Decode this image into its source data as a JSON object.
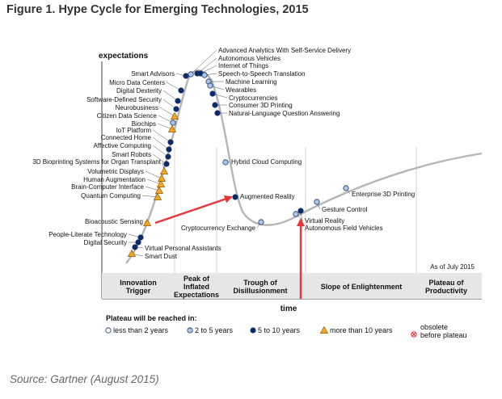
{
  "figure_title": "Figure 1. Hype Cycle for Emerging Technologies, 2015",
  "source_note": "Source: Gartner (August 2015)",
  "colors": {
    "curve": "#b5b5b5",
    "dot_dark": "#0b2a6e",
    "dot_light": "#a9c7e8",
    "dot_white": "#ffffff",
    "triangle_fill": "#f5a623",
    "triangle_stroke": "#8a5a00",
    "obsolete": "#e03030",
    "annotation_arrow": "#e8373a",
    "phase_band": "#e6e6e6",
    "phase_divider": "#c9c9c9"
  },
  "chart_data": {
    "type": "diagram",
    "title": "Figure 1. Hype Cycle for Emerging Technologies, 2015",
    "ylabel": "expectations",
    "xlabel": "time",
    "as_of": "As of July 2015",
    "phases": [
      "Innovation Trigger",
      "Peak of Inflated Expectations",
      "Trough of Disillusionment",
      "Slope of Enlightenment",
      "Plateau of Productivity"
    ],
    "legend": {
      "title": "Plateau will be reached in:",
      "items": [
        {
          "marker": "open",
          "label": "less than 2 years"
        },
        {
          "marker": "light",
          "label": "2 to 5 years"
        },
        {
          "marker": "dark",
          "label": "5 to 10 years"
        },
        {
          "marker": "triangle",
          "label": "more than 10 years"
        },
        {
          "marker": "obsolete",
          "label": "obsolete before plateau"
        }
      ]
    },
    "technologies": [
      {
        "name": "Smart Dust",
        "plateau": "more than 10 years",
        "marker": "triangle"
      },
      {
        "name": "Virtual Personal Assistants",
        "plateau": "5 to 10 years",
        "marker": "dark"
      },
      {
        "name": "Digital Security",
        "plateau": "5 to 10 years",
        "marker": "dark"
      },
      {
        "name": "People-Literate Technology",
        "plateau": "5 to 10 years",
        "marker": "dark"
      },
      {
        "name": "Bioacoustic Sensing",
        "plateau": "more than 10 years",
        "marker": "triangle"
      },
      {
        "name": "Quantum Computing",
        "plateau": "more than 10 years",
        "marker": "triangle"
      },
      {
        "name": "Brain-Computer Interface",
        "plateau": "more than 10 years",
        "marker": "triangle"
      },
      {
        "name": "Human Augmentation",
        "plateau": "more than 10 years",
        "marker": "triangle"
      },
      {
        "name": "Volumetric Displays",
        "plateau": "more than 10 years",
        "marker": "triangle"
      },
      {
        "name": "3D Bioprinting Systems for Organ Transplant",
        "plateau": "more than 10 years",
        "marker": "triangle"
      },
      {
        "name": "Smart Robots",
        "plateau": "5 to 10 years",
        "marker": "dark"
      },
      {
        "name": "Affective Computing",
        "plateau": "5 to 10 years",
        "marker": "dark"
      },
      {
        "name": "Connected Home",
        "plateau": "5 to 10 years",
        "marker": "dark"
      },
      {
        "name": "IoT Platform",
        "plateau": "5 to 10 years",
        "marker": "dark"
      },
      {
        "name": "Biochips",
        "plateau": "more than 10 years",
        "marker": "triangle"
      },
      {
        "name": "Citizen Data Science",
        "plateau": "2 to 5 years",
        "marker": "light"
      },
      {
        "name": "Neurobusiness",
        "plateau": "more than 10 years",
        "marker": "triangle"
      },
      {
        "name": "Software-Defined Security",
        "plateau": "5 to 10 years",
        "marker": "dark"
      },
      {
        "name": "Digital Dexterity",
        "plateau": "5 to 10 years",
        "marker": "dark"
      },
      {
        "name": "Micro Data Centers",
        "plateau": "5 to 10 years",
        "marker": "dark"
      },
      {
        "name": "Smart Advisors",
        "plateau": "5 to 10 years",
        "marker": "dark"
      },
      {
        "name": "Advanced Analytics With Self-Service Delivery",
        "plateau": "2 to 5 years",
        "marker": "light"
      },
      {
        "name": "Autonomous Vehicles",
        "plateau": "5 to 10 years",
        "marker": "dark"
      },
      {
        "name": "Internet of Things",
        "plateau": "5 to 10 years",
        "marker": "dark"
      },
      {
        "name": "Speech-to-Speech Translation",
        "plateau": "2 to 5 years",
        "marker": "light"
      },
      {
        "name": "Machine Learning",
        "plateau": "2 to 5 years",
        "marker": "light"
      },
      {
        "name": "Wearables",
        "plateau": "2 to 5 years",
        "marker": "light"
      },
      {
        "name": "Cryptocurrencies",
        "plateau": "5 to 10 years",
        "marker": "dark"
      },
      {
        "name": "Consumer 3D Printing",
        "plateau": "5 to 10 years",
        "marker": "dark"
      },
      {
        "name": "Natural-Language Question Answering",
        "plateau": "5 to 10 years",
        "marker": "dark"
      },
      {
        "name": "Hybrid Cloud Computing",
        "plateau": "2 to 5 years",
        "marker": "light"
      },
      {
        "name": "Augmented Reality",
        "plateau": "5 to 10 years",
        "marker": "dark"
      },
      {
        "name": "Cryptocurrency Exchange",
        "plateau": "2 to 5 years",
        "marker": "light"
      },
      {
        "name": "Virtual Reality",
        "plateau": "2 to 5 years",
        "marker": "light"
      },
      {
        "name": "Autonomous Field Vehicles",
        "plateau": "5 to 10 years",
        "marker": "dark"
      },
      {
        "name": "Gesture Control",
        "plateau": "2 to 5 years",
        "marker": "light"
      },
      {
        "name": "Enterprise 3D Printing",
        "plateau": "2 to 5 years",
        "marker": "light"
      }
    ],
    "annotations": [
      "arrow from Bioacoustic Sensing to Augmented Reality",
      "vertical arrow pointing up to Virtual Reality"
    ]
  }
}
